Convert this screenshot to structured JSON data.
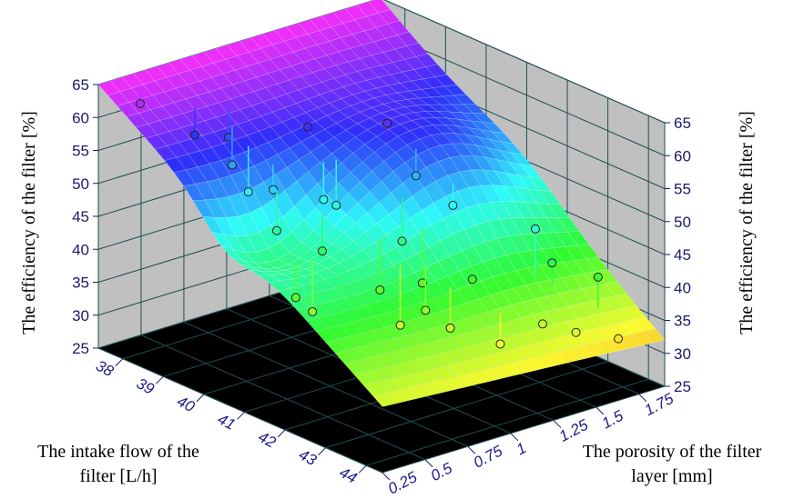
{
  "chart_data": {
    "type": "surface3d",
    "zlabel": "The efficiency of the filter [%]",
    "zlabel_right": "The efficiency of the filter [%]",
    "xlabel": [
      "The intake flow of the",
      "filter [L/h]"
    ],
    "ylabel": [
      "The porosity of the filter",
      "layer [mm]"
    ],
    "z_ticks": [
      "25",
      "30",
      "35",
      "40",
      "45",
      "50",
      "55",
      "60",
      "65"
    ],
    "x_ticks": [
      "38",
      "39",
      "40",
      "41",
      "42",
      "43",
      "44"
    ],
    "y_ticks": [
      "0.25",
      "0.5",
      "0.75",
      "1",
      "1.25",
      "1.5",
      "1.75"
    ],
    "xlim": [
      37.4,
      44.4
    ],
    "ylim": [
      0.25,
      1.9
    ],
    "zlim": [
      25,
      65
    ],
    "colors": {
      "floor": "#000000",
      "walls": "#c0c0c0",
      "grid": "#1f4f4f",
      "axis_text": "#1a1a8e"
    },
    "points": [
      {
        "x": 37.8,
        "y": 0.4,
        "z": 62
      },
      {
        "x": 38.3,
        "y": 0.6,
        "z": 57
      },
      {
        "x": 38.5,
        "y": 0.75,
        "z": 56
      },
      {
        "x": 38.8,
        "y": 0.7,
        "z": 53
      },
      {
        "x": 39.2,
        "y": 0.7,
        "z": 50
      },
      {
        "x": 39.4,
        "y": 1.0,
        "z": 58
      },
      {
        "x": 39.6,
        "y": 0.75,
        "z": 51
      },
      {
        "x": 39.9,
        "y": 0.7,
        "z": 46
      },
      {
        "x": 40.0,
        "y": 0.95,
        "z": 49
      },
      {
        "x": 40.1,
        "y": 1.0,
        "z": 48
      },
      {
        "x": 40.3,
        "y": 1.25,
        "z": 59
      },
      {
        "x": 40.6,
        "y": 0.8,
        "z": 44
      },
      {
        "x": 40.8,
        "y": 1.3,
        "z": 52
      },
      {
        "x": 41.0,
        "y": 0.55,
        "z": 40
      },
      {
        "x": 41.2,
        "y": 0.6,
        "z": 38
      },
      {
        "x": 41.3,
        "y": 1.1,
        "z": 45
      },
      {
        "x": 41.5,
        "y": 1.35,
        "z": 49
      },
      {
        "x": 41.6,
        "y": 0.9,
        "z": 40
      },
      {
        "x": 41.8,
        "y": 1.1,
        "z": 40
      },
      {
        "x": 42.1,
        "y": 0.9,
        "z": 36
      },
      {
        "x": 42.3,
        "y": 1.0,
        "z": 38
      },
      {
        "x": 42.4,
        "y": 1.25,
        "z": 41
      },
      {
        "x": 42.7,
        "y": 1.05,
        "z": 36
      },
      {
        "x": 42.9,
        "y": 1.5,
        "z": 48
      },
      {
        "x": 43.1,
        "y": 1.55,
        "z": 43
      },
      {
        "x": 43.3,
        "y": 1.2,
        "z": 34
      },
      {
        "x": 43.5,
        "y": 1.4,
        "z": 36
      },
      {
        "x": 43.6,
        "y": 1.7,
        "z": 41
      },
      {
        "x": 43.9,
        "y": 1.5,
        "z": 35
      },
      {
        "x": 44.1,
        "y": 1.7,
        "z": 33
      }
    ]
  }
}
